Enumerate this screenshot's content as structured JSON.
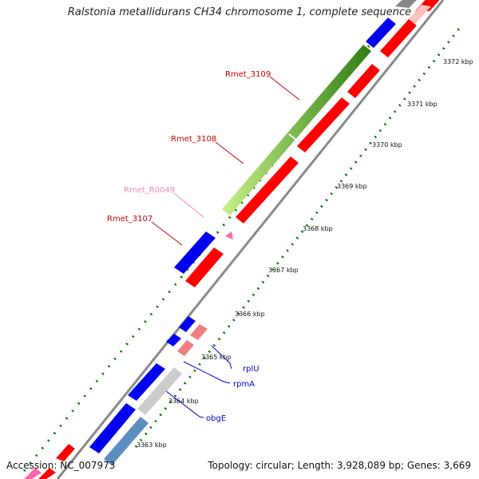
{
  "title": "Ralstonia metallidurans CH34 chromosome 1, complete sequence",
  "footer": {
    "accession": "Accession: NC_007973",
    "topology": "Topology: circular; Length: 3,928,089 bp; Genes: 3,669"
  },
  "scale_labels": [
    {
      "text": "3363 kbp"
    },
    {
      "text": "3364 kbp"
    },
    {
      "text": "3365 kbp"
    },
    {
      "text": "3366 kbp"
    },
    {
      "text": "3367 kbp"
    },
    {
      "text": "3368 kbp"
    },
    {
      "text": "3369 kbp"
    },
    {
      "text": "3370 kbp"
    },
    {
      "text": "3371 kbp"
    },
    {
      "text": "3372 kbp"
    }
  ],
  "gene_labels": [
    {
      "name": "Rmet_3109",
      "color": "#cc0000"
    },
    {
      "name": "Rmet_3108",
      "color": "#cc0000"
    },
    {
      "name": "Rmet_R0049",
      "color": "#ee88bb"
    },
    {
      "name": "Rmet_3107",
      "color": "#cc0000"
    },
    {
      "name": "rplU",
      "color": "#0000cc"
    },
    {
      "name": "rpmA",
      "color": "#0000cc"
    },
    {
      "name": "obgE",
      "color": "#0000cc"
    }
  ],
  "colors": {
    "backbone": "#8a8a8a",
    "tick_green": "#007700",
    "red": "#ff0000",
    "blue": "#0000ee",
    "green": "#88dd22",
    "dark_green": "#2e8b2e",
    "pink": "#f08080",
    "light_gray": "#cccccc",
    "steel_blue": "#5b8fc0",
    "rrna_pink": "#ff66aa"
  }
}
